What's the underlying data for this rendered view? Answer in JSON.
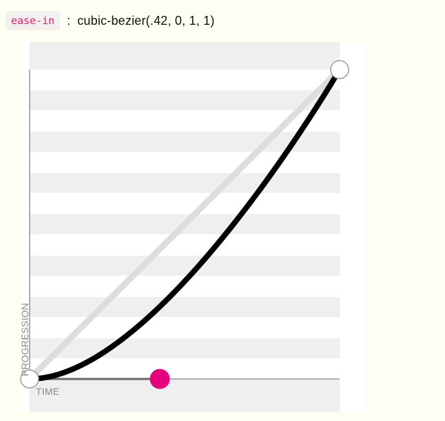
{
  "header": {
    "keyword": "ease-in",
    "separator": ":",
    "function_text": "cubic-bezier(.42, 0, 1, 1)"
  },
  "chart_data": {
    "type": "line",
    "xlabel": "TIME",
    "ylabel": "PROGRESSION",
    "xlim": [
      0,
      1
    ],
    "ylim": [
      0,
      1
    ],
    "control_points": {
      "p1": [
        0.42,
        0
      ],
      "p2": [
        1,
        1
      ]
    },
    "series": [
      {
        "values": [
          [
            0,
            0
          ],
          [
            1,
            1
          ]
        ]
      },
      {
        "values": [
          [
            0,
            0
          ],
          [
            0.42,
            0
          ],
          [
            1,
            1
          ],
          [
            1,
            1
          ]
        ]
      }
    ],
    "grid": true
  },
  "colors": {
    "background": "#fffef3",
    "panel": "#ffffff",
    "band": "#efefef",
    "axis": "#5f5f5f",
    "linear_curve": "#dddddd",
    "bezier_curve": "#000000",
    "handle_line": "#666666",
    "control_point_1": "#e6007e",
    "endpoint_fill": "#ffffff",
    "endpoint_stroke": "#9b9b9b",
    "code_text": "#e0206a",
    "code_bg": "#f3f1ef"
  }
}
